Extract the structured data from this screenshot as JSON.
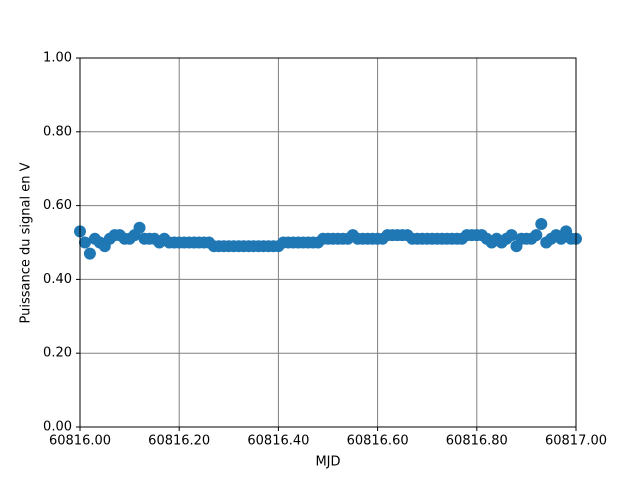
{
  "chart_data": {
    "type": "scatter",
    "xlabel": "MJD",
    "ylabel": "Puissance du signal en V",
    "color": "#1f77b4",
    "grid": true,
    "grid_color": "#808080",
    "xlim": [
      60816.0,
      60817.0
    ],
    "xticks": [
      {
        "value": 60816.0,
        "label": "60816.00"
      },
      {
        "value": 60816.2,
        "label": "60816.20"
      },
      {
        "value": 60816.4,
        "label": "60816.40"
      },
      {
        "value": 60816.6,
        "label": "60816.60"
      },
      {
        "value": 60816.8,
        "label": "60816.80"
      },
      {
        "value": 60817.0,
        "label": "60817.00"
      }
    ],
    "ylim": [
      0,
      1
    ],
    "yticks": [
      {
        "value": 0,
        "label": "0.00"
      },
      {
        "value": 0.2,
        "label": "0.20"
      },
      {
        "value": 0.4,
        "label": "0.40"
      },
      {
        "value": 0.6,
        "label": "0.60"
      },
      {
        "value": 0.8,
        "label": "0.80"
      },
      {
        "value": 1,
        "label": "1.00"
      }
    ],
    "x": [
      60816.0,
      60816.01,
      60816.02,
      60816.03,
      60816.04,
      60816.05,
      60816.06,
      60816.07,
      60816.08,
      60816.09,
      60816.1,
      60816.11,
      60816.12,
      60816.13,
      60816.14,
      60816.15,
      60816.16,
      60816.17,
      60816.18,
      60816.19,
      60816.2,
      60816.21,
      60816.22,
      60816.23,
      60816.24,
      60816.25,
      60816.26,
      60816.27,
      60816.28,
      60816.29,
      60816.3,
      60816.31,
      60816.32,
      60816.33,
      60816.34,
      60816.35,
      60816.36,
      60816.37,
      60816.38,
      60816.39,
      60816.4,
      60816.41,
      60816.42,
      60816.43,
      60816.44,
      60816.45,
      60816.46,
      60816.47,
      60816.48,
      60816.49,
      60816.5,
      60816.51,
      60816.52,
      60816.53,
      60816.54,
      60816.55,
      60816.56,
      60816.57,
      60816.58,
      60816.59,
      60816.6,
      60816.61,
      60816.62,
      60816.63,
      60816.64,
      60816.65,
      60816.66,
      60816.67,
      60816.68,
      60816.69,
      60816.7,
      60816.71,
      60816.72,
      60816.73,
      60816.74,
      60816.75,
      60816.76,
      60816.77,
      60816.78,
      60816.79,
      60816.8,
      60816.81,
      60816.82,
      60816.83,
      60816.84,
      60816.85,
      60816.86,
      60816.87,
      60816.88,
      60816.89,
      60816.9,
      60816.91,
      60816.92,
      60816.93,
      60816.94,
      60816.95,
      60816.96,
      60816.97,
      60816.98,
      60816.99,
      60817.0
    ],
    "values": [
      0.53,
      0.5,
      0.47,
      0.51,
      0.5,
      0.49,
      0.51,
      0.52,
      0.52,
      0.51,
      0.51,
      0.52,
      0.54,
      0.51,
      0.51,
      0.51,
      0.5,
      0.51,
      0.5,
      0.5,
      0.5,
      0.5,
      0.5,
      0.5,
      0.5,
      0.5,
      0.5,
      0.49,
      0.49,
      0.49,
      0.49,
      0.49,
      0.49,
      0.49,
      0.49,
      0.49,
      0.49,
      0.49,
      0.49,
      0.49,
      0.49,
      0.5,
      0.5,
      0.5,
      0.5,
      0.5,
      0.5,
      0.5,
      0.5,
      0.51,
      0.51,
      0.51,
      0.51,
      0.51,
      0.51,
      0.52,
      0.51,
      0.51,
      0.51,
      0.51,
      0.51,
      0.51,
      0.52,
      0.52,
      0.52,
      0.52,
      0.52,
      0.51,
      0.51,
      0.51,
      0.51,
      0.51,
      0.51,
      0.51,
      0.51,
      0.51,
      0.51,
      0.51,
      0.52,
      0.52,
      0.52,
      0.52,
      0.51,
      0.5,
      0.51,
      0.5,
      0.51,
      0.52,
      0.49,
      0.51,
      0.51,
      0.51,
      0.52,
      0.55,
      0.5,
      0.51,
      0.52,
      0.51,
      0.53,
      0.51,
      0.51
    ]
  }
}
